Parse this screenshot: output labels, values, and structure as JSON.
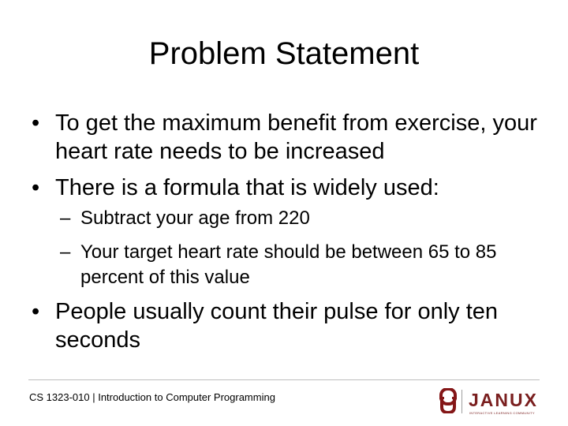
{
  "slide": {
    "title": "Problem Statement",
    "bullets": [
      {
        "marker": "•",
        "text": "To get the maximum benefit from exercise, your heart rate needs to be increased"
      },
      {
        "marker": "•",
        "text": "There is a formula that is widely used:",
        "subitems": [
          {
            "marker": "–",
            "text": "Subtract your age from 220"
          },
          {
            "marker": "–",
            "text": "Your target heart rate should be between 65 to 85 percent of this value"
          }
        ]
      },
      {
        "marker": "•",
        "text": "People usually count their pulse for only ten seconds"
      }
    ]
  },
  "footer": {
    "course": "CS 1323-010 | Introduction to Computer Programming",
    "logo_word": "JANUX",
    "logo_tagline": "INTERACTIVE LEARNING COMMUNITY",
    "icon": "ou-logo-icon"
  },
  "colors": {
    "brand_crimson": "#841617",
    "janux_text": "#7a1f1f",
    "rule": "#bdbdbd"
  }
}
